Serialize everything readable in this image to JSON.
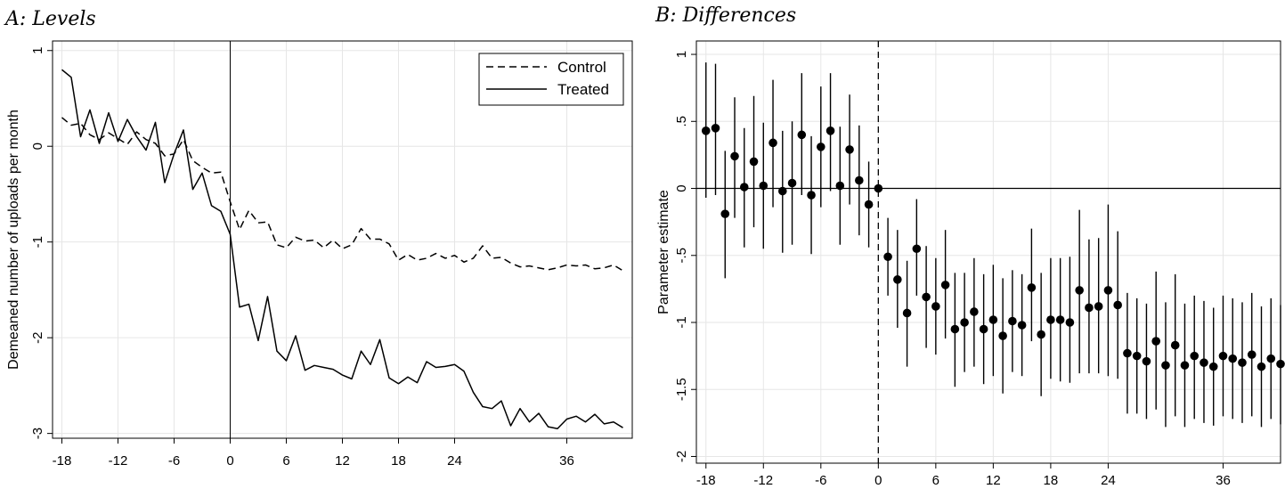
{
  "chart_data": [
    {
      "type": "line",
      "title": "A: Levels",
      "xlabel": "",
      "ylabel": "Demeaned number of uploads per month",
      "xlim": [
        -19,
        43
      ],
      "ylim": [
        -3.05,
        1.1
      ],
      "xticks": [
        -18,
        -12,
        -6,
        0,
        6,
        12,
        18,
        24,
        36
      ],
      "yticks": [
        1,
        0,
        -1,
        -2,
        -3
      ],
      "grid": true,
      "legend": "top-right",
      "x": [
        -18,
        -17,
        -16,
        -15,
        -14,
        -13,
        -12,
        -11,
        -10,
        -9,
        -8,
        -7,
        -6,
        -5,
        -4,
        -3,
        -2,
        -1,
        0,
        1,
        2,
        3,
        4,
        5,
        6,
        7,
        8,
        9,
        10,
        11,
        12,
        13,
        14,
        15,
        16,
        17,
        18,
        19,
        20,
        21,
        22,
        23,
        24,
        25,
        26,
        27,
        28,
        29,
        30,
        31,
        32,
        33,
        34,
        35,
        36,
        37,
        38,
        39,
        40,
        41,
        42
      ],
      "series": [
        {
          "name": "Control",
          "values": [
            0.3,
            0.22,
            0.24,
            0.12,
            0.07,
            0.14,
            0.08,
            0.02,
            0.15,
            0.07,
            0.03,
            -0.1,
            -0.08,
            0.07,
            -0.15,
            -0.22,
            -0.28,
            -0.27,
            -0.58,
            -0.87,
            -0.67,
            -0.8,
            -0.79,
            -1.03,
            -1.06,
            -0.95,
            -0.99,
            -0.98,
            -1.06,
            -0.98,
            -1.07,
            -1.03,
            -0.86,
            -0.97,
            -0.97,
            -1.02,
            -1.19,
            -1.13,
            -1.19,
            -1.17,
            -1.12,
            -1.17,
            -1.14,
            -1.21,
            -1.17,
            -1.04,
            -1.17,
            -1.16,
            -1.22,
            -1.26,
            -1.25,
            -1.27,
            -1.29,
            -1.27,
            -1.24,
            -1.25,
            -1.24,
            -1.28,
            -1.27,
            -1.24,
            -1.3
          ]
        },
        {
          "name": "Treated",
          "values": [
            0.8,
            0.72,
            0.1,
            0.38,
            0.03,
            0.35,
            0.05,
            0.28,
            0.1,
            -0.04,
            0.25,
            -0.38,
            -0.08,
            0.17,
            -0.45,
            -0.28,
            -0.62,
            -0.68,
            -0.92,
            -1.68,
            -1.65,
            -2.03,
            -1.57,
            -2.14,
            -2.24,
            -1.98,
            -2.34,
            -2.29,
            -2.31,
            -2.33,
            -2.39,
            -2.43,
            -2.14,
            -2.28,
            -2.02,
            -2.42,
            -2.48,
            -2.41,
            -2.47,
            -2.25,
            -2.31,
            -2.3,
            -2.28,
            -2.35,
            -2.57,
            -2.72,
            -2.74,
            -2.66,
            -2.92,
            -2.74,
            -2.88,
            -2.79,
            -2.93,
            -2.95,
            -2.85,
            -2.82,
            -2.88,
            -2.8,
            -2.9,
            -2.88,
            -2.94
          ]
        }
      ]
    },
    {
      "type": "scatter",
      "title": "B: Differences",
      "xlabel": "",
      "ylabel": "Parameter estimate",
      "xlim": [
        -19,
        42
      ],
      "ylim": [
        -2.05,
        1.1
      ],
      "xticks": [
        -18,
        -12,
        -6,
        0,
        6,
        12,
        18,
        24,
        36
      ],
      "yticks": [
        "1",
        ".5",
        "0",
        "-.5",
        "-1",
        "-1.5",
        "-2"
      ],
      "grid": true,
      "x": [
        -18,
        -17,
        -16,
        -15,
        -14,
        -13,
        -12,
        -11,
        -10,
        -9,
        -8,
        -7,
        -6,
        -5,
        -4,
        -3,
        -2,
        -1,
        0,
        1,
        2,
        3,
        4,
        5,
        6,
        7,
        8,
        9,
        10,
        11,
        12,
        13,
        14,
        15,
        16,
        17,
        18,
        19,
        20,
        21,
        22,
        23,
        24,
        25,
        26,
        27,
        28,
        29,
        30,
        31,
        32,
        33,
        34,
        35,
        36,
        37,
        38,
        39,
        40,
        41,
        42
      ],
      "estimate": [
        0.43,
        0.45,
        -0.19,
        0.24,
        0.01,
        0.2,
        0.02,
        0.34,
        -0.02,
        0.04,
        0.4,
        -0.05,
        0.31,
        0.43,
        0.02,
        0.29,
        0.06,
        -0.12,
        0.0,
        -0.51,
        -0.68,
        -0.93,
        -0.45,
        -0.81,
        -0.88,
        -0.72,
        -1.05,
        -1.0,
        -0.92,
        -1.05,
        -0.98,
        -1.1,
        -0.99,
        -1.02,
        -0.74,
        -1.09,
        -0.98,
        -0.98,
        -1.0,
        -0.76,
        -0.89,
        -0.88,
        -0.76,
        -0.87,
        -1.23,
        -1.25,
        -1.29,
        -1.14,
        -1.32,
        -1.17,
        -1.32,
        -1.25,
        -1.3,
        -1.33,
        -1.25,
        -1.27,
        -1.3,
        -1.24,
        -1.33,
        -1.27,
        -1.31
      ],
      "ci_lower": [
        -0.07,
        -0.05,
        -0.67,
        -0.22,
        -0.44,
        -0.29,
        -0.45,
        -0.14,
        -0.48,
        -0.42,
        -0.05,
        -0.49,
        -0.14,
        -0.02,
        -0.42,
        -0.12,
        -0.35,
        -0.44,
        0.0,
        -0.8,
        -1.04,
        -1.33,
        -0.8,
        -1.19,
        -1.24,
        -1.12,
        -1.48,
        -1.37,
        -1.33,
        -1.46,
        -1.4,
        -1.53,
        -1.37,
        -1.4,
        -1.14,
        -1.55,
        -1.42,
        -1.44,
        -1.45,
        -1.38,
        -1.38,
        -1.38,
        -1.4,
        -1.42,
        -1.68,
        -1.68,
        -1.72,
        -1.65,
        -1.78,
        -1.7,
        -1.78,
        -1.72,
        -1.75,
        -1.77,
        -1.7,
        -1.72,
        -1.75,
        -1.7,
        -1.78,
        -1.72,
        -1.76
      ],
      "ci_upper": [
        0.94,
        0.93,
        0.28,
        0.68,
        0.45,
        0.69,
        0.49,
        0.81,
        0.43,
        0.5,
        0.86,
        0.39,
        0.76,
        0.86,
        0.46,
        0.7,
        0.47,
        0.2,
        0.0,
        -0.22,
        -0.31,
        -0.54,
        -0.08,
        -0.43,
        -0.52,
        -0.31,
        -0.63,
        -0.63,
        -0.52,
        -0.64,
        -0.57,
        -0.67,
        -0.61,
        -0.64,
        -0.3,
        -0.63,
        -0.52,
        -0.52,
        -0.51,
        -0.16,
        -0.38,
        -0.37,
        -0.12,
        -0.32,
        -0.78,
        -0.82,
        -0.86,
        -0.62,
        -0.85,
        -0.64,
        -0.86,
        -0.8,
        -0.84,
        -0.89,
        -0.8,
        -0.82,
        -0.85,
        -0.78,
        -0.88,
        -0.82,
        -0.87
      ]
    }
  ]
}
